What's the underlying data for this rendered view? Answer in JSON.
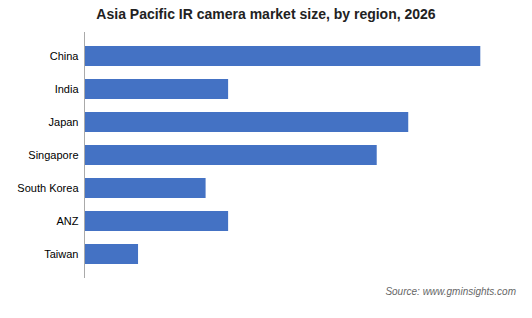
{
  "chart_data": {
    "type": "bar",
    "title": "Asia Pacific IR camera market size, by region, 2026",
    "categories": [
      "Taiwan",
      "ANZ",
      "South Korea",
      "Singapore",
      "Japan",
      "India",
      "China"
    ],
    "values": [
      12,
      32,
      27,
      65,
      72,
      32,
      88
    ],
    "color": "#4472c4",
    "orientation": "horizontal",
    "xlim": [
      0,
      95.04
    ],
    "tick_labels": "y",
    "grid": false,
    "annotations": [
      "Source: www.gminsights.com"
    ]
  }
}
